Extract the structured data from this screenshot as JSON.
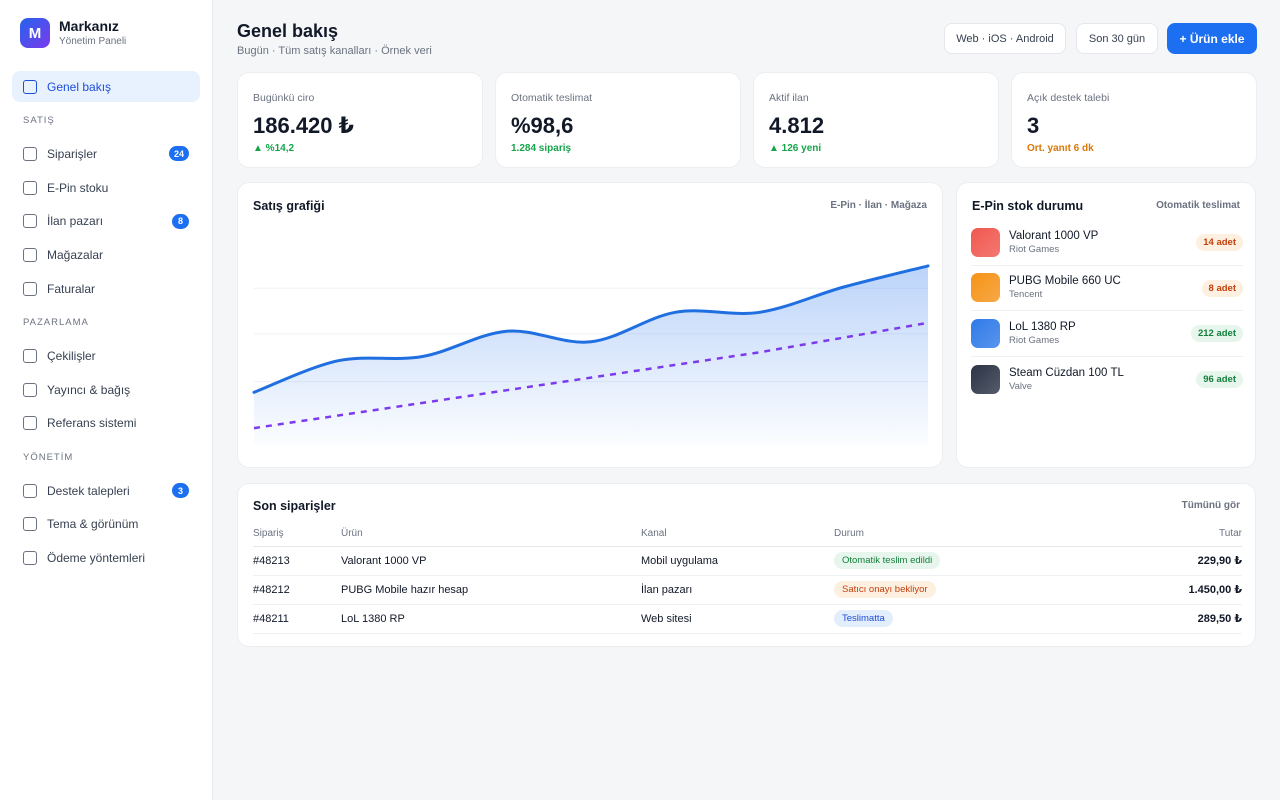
{
  "brand": {
    "logo_letter": "M",
    "name": "Markanız",
    "subtitle": "Yönetim Paneli"
  },
  "sidebar": {
    "active": "Genel bakış",
    "items": [
      {
        "label": "Genel bakış",
        "active": true
      },
      {
        "section": "SATIŞ"
      },
      {
        "label": "Siparişler",
        "badge": "24"
      },
      {
        "label": "E-Pin stoku"
      },
      {
        "label": "İlan pazarı",
        "badge": "8"
      },
      {
        "label": "Mağazalar"
      },
      {
        "label": "Faturalar"
      },
      {
        "section": "PAZARLAMA"
      },
      {
        "label": "Çekilişler"
      },
      {
        "label": "Yayıncı & bağış"
      },
      {
        "label": "Referans sistemi"
      },
      {
        "section": "YÖNETİM"
      },
      {
        "label": "Destek talepleri",
        "badge": "3"
      },
      {
        "label": "Tema & görünüm"
      },
      {
        "label": "Ödeme yöntemleri"
      }
    ]
  },
  "header": {
    "title": "Genel bakış",
    "subtitle": "Bugün · Tüm satış kanalları · Örnek veri",
    "platform_label": "Web · iOS · Android",
    "period_label": "Son 30 gün",
    "add_label": "+ Ürün ekle"
  },
  "stats": [
    {
      "label": "Bugünkü ciro",
      "value": "186.420 ₺",
      "sub": "▲ %14,2",
      "tone": "up"
    },
    {
      "label": "Otomatik teslimat",
      "value": "%98,6",
      "sub": "1.284 sipariş",
      "tone": "up"
    },
    {
      "label": "Aktif ilan",
      "value": "4.812",
      "sub": "▲ 126 yeni",
      "tone": "up"
    },
    {
      "label": "Açık destek talebi",
      "value": "3",
      "sub": "Ort. yanıt 6 dk",
      "tone": "warn"
    }
  ],
  "sales_chart": {
    "title": "Satış grafiği",
    "legend": "E-Pin · İlan · Mağaza"
  },
  "chart_data": {
    "type": "area",
    "x": [
      0,
      1,
      2,
      3,
      4,
      5,
      6,
      7,
      8
    ],
    "series": [
      {
        "values": [
          17,
          32,
          34,
          46,
          41,
          55,
          55,
          67,
          77
        ],
        "style": "area-line",
        "color": "#1f6fe0"
      },
      {
        "values": [
          0,
          6,
          12,
          18,
          24,
          30,
          36,
          43,
          50
        ],
        "style": "dashed",
        "color": "#7c3aed"
      }
    ],
    "ylim": [
      -8,
      95
    ],
    "grid": true,
    "xlabel": "",
    "ylabel": ""
  },
  "stock": {
    "title": "E-Pin stok durumu",
    "right_label": "Otomatik teslimat",
    "items": [
      {
        "name": "Valorant 1000 VP",
        "publisher": "Riot Games",
        "badge": "14 adet",
        "tone": "orange",
        "icon_color": "#f0574f"
      },
      {
        "name": "PUBG Mobile 660 UC",
        "publisher": "Tencent",
        "badge": "8 adet",
        "tone": "orange",
        "icon_color": "#f59317"
      },
      {
        "name": "LoL 1380 RP",
        "publisher": "Riot Games",
        "badge": "212 adet",
        "tone": "green",
        "icon_color": "#2f7ae8"
      },
      {
        "name": "Steam Cüzdan 100 TL",
        "publisher": "Valve",
        "badge": "96 adet",
        "tone": "green",
        "icon_color": "#2b3345"
      }
    ]
  },
  "orders": {
    "title": "Son siparişler",
    "view_all": "Tümünü gör",
    "columns": [
      "Sipariş",
      "Ürün",
      "Kanal",
      "Durum",
      "Tutar"
    ],
    "rows": [
      {
        "id": "#48213",
        "product": "Valorant 1000 VP",
        "channel": "Mobil uygulama",
        "status": "Otomatik teslim edildi",
        "tone": "green",
        "amount": "229,90 ₺"
      },
      {
        "id": "#48212",
        "product": "PUBG Mobile hazır hesap",
        "channel": "İlan pazarı",
        "status": "Satıcı onayı bekliyor",
        "tone": "orange",
        "amount": "1.450,00 ₺"
      },
      {
        "id": "#48211",
        "product": "LoL 1380 RP",
        "channel": "Web sitesi",
        "status": "Teslimatta",
        "tone": "blue",
        "amount": "289,50 ₺"
      }
    ]
  }
}
